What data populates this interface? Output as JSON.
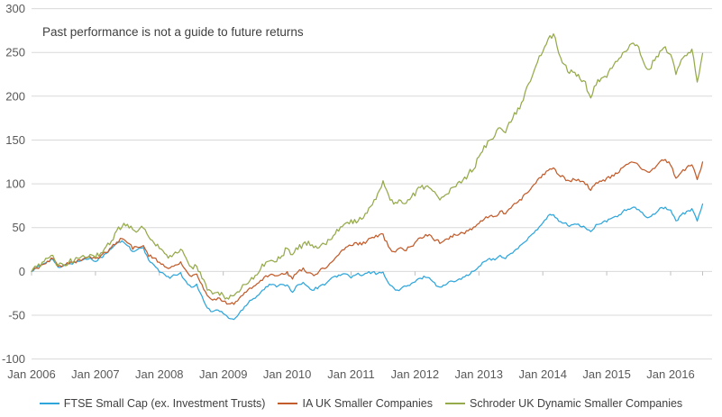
{
  "chart_data": {
    "type": "line",
    "annotation": "Past performance is not a guide to future returns",
    "x_tick_labels": [
      "Jan 2006",
      "Jan 2007",
      "Jan 2008",
      "Jan 2009",
      "Jan 2010",
      "Jan 2011",
      "Jan 2012",
      "Jan 2013",
      "Jan 2014",
      "Jan 2015",
      "Jan 2016"
    ],
    "x_unit": "month",
    "x_start_label": "Jan 2006",
    "x_end_label": "Jul 2016",
    "points_per_year": 12,
    "y_ticks": [
      300,
      250,
      200,
      150,
      100,
      50,
      0,
      -50,
      -100
    ],
    "ylim": [
      -100,
      300
    ],
    "grid": "horizontal-only",
    "legend_position": "bottom-center",
    "series": [
      {
        "name": "FTSE Small Cap (ex. Investment Trusts)",
        "color": "#2EA6DC",
        "values": [
          0,
          4,
          8,
          12,
          14,
          4,
          6,
          9,
          10,
          12,
          14,
          15,
          12,
          16,
          20,
          26,
          32,
          35,
          30,
          22,
          25,
          27,
          12,
          8,
          0,
          -4,
          -8,
          -4,
          -2,
          -12,
          -18,
          -15,
          -28,
          -42,
          -46,
          -44,
          -48,
          -53,
          -55,
          -48,
          -40,
          -33,
          -30,
          -24,
          -18,
          -15,
          -17,
          -14,
          -16,
          -24,
          -16,
          -12,
          -18,
          -21,
          -17,
          -15,
          -10,
          -6,
          -4,
          -3,
          -7,
          -3,
          -5,
          -2,
          -1,
          -3,
          0,
          -14,
          -19,
          -22,
          -17,
          -16,
          -12,
          -8,
          -6,
          -9,
          -16,
          -18,
          -14,
          -11,
          -9,
          -7,
          -4,
          0,
          5,
          11,
          15,
          13,
          18,
          15,
          21,
          25,
          30,
          36,
          42,
          48,
          55,
          63,
          65,
          58,
          55,
          52,
          54,
          52,
          50,
          45,
          53,
          55,
          57,
          61,
          63,
          68,
          71,
          73,
          70,
          64,
          62,
          66,
          72,
          73,
          70,
          57,
          65,
          68,
          71,
          58,
          77
        ]
      },
      {
        "name": "IA UK Smaller Companies",
        "color": "#C25C2B",
        "values": [
          0,
          4,
          8,
          12,
          14,
          5,
          7,
          9,
          11,
          13,
          15,
          16,
          14,
          18,
          22,
          28,
          34,
          37,
          33,
          26,
          28,
          30,
          18,
          15,
          10,
          6,
          3,
          8,
          11,
          2,
          -6,
          -3,
          -15,
          -28,
          -32,
          -30,
          -34,
          -38,
          -37,
          -30,
          -24,
          -19,
          -16,
          -10,
          -5,
          -3,
          -5,
          -2,
          -1,
          -8,
          -1,
          4,
          -2,
          -4,
          0,
          3,
          9,
          15,
          22,
          28,
          30,
          32,
          31,
          35,
          38,
          40,
          42,
          28,
          22,
          26,
          24,
          28,
          32,
          38,
          42,
          40,
          35,
          33,
          37,
          40,
          42,
          44,
          47,
          50,
          54,
          60,
          64,
          63,
          68,
          66,
          73,
          77,
          82,
          90,
          96,
          105,
          110,
          116,
          118,
          111,
          107,
          103,
          105,
          103,
          100,
          93,
          101,
          103,
          106,
          109,
          112,
          118,
          122,
          125,
          122,
          116,
          114,
          118,
          126,
          128,
          122,
          106,
          114,
          118,
          122,
          104,
          125
        ]
      },
      {
        "name": "Schroder UK Dynamic Smaller Companies",
        "color": "#95AA4B",
        "values": [
          0,
          5,
          10,
          14,
          17,
          7,
          9,
          11,
          13,
          15,
          17,
          18,
          17,
          22,
          27,
          35,
          45,
          52,
          55,
          46,
          48,
          50,
          38,
          33,
          25,
          21,
          17,
          21,
          25,
          14,
          4,
          7,
          -8,
          -22,
          -27,
          -25,
          -28,
          -31,
          -29,
          -23,
          -15,
          -9,
          -4,
          3,
          9,
          14,
          12,
          19,
          26,
          19,
          26,
          31,
          33,
          26,
          28,
          31,
          37,
          44,
          50,
          56,
          58,
          56,
          60,
          67,
          76,
          90,
          104,
          86,
          76,
          82,
          78,
          83,
          88,
          95,
          98,
          94,
          87,
          83,
          90,
          95,
          100,
          105,
          111,
          118,
          130,
          142,
          150,
          155,
          163,
          158,
          172,
          181,
          193,
          210,
          223,
          240,
          252,
          266,
          270,
          250,
          236,
          226,
          229,
          221,
          215,
          197,
          214,
          220,
          223,
          232,
          239,
          248,
          255,
          262,
          255,
          238,
          232,
          242,
          252,
          256,
          248,
          226,
          240,
          248,
          253,
          216,
          249
        ]
      }
    ]
  },
  "colors": {
    "background": "#FFFFFF",
    "grid": "#D9D9D9",
    "zero_axis_tick": "#BFBFBF",
    "axis_text": "#595959",
    "annotation_text": "#3F3F3F",
    "legend_text": "#404040"
  }
}
